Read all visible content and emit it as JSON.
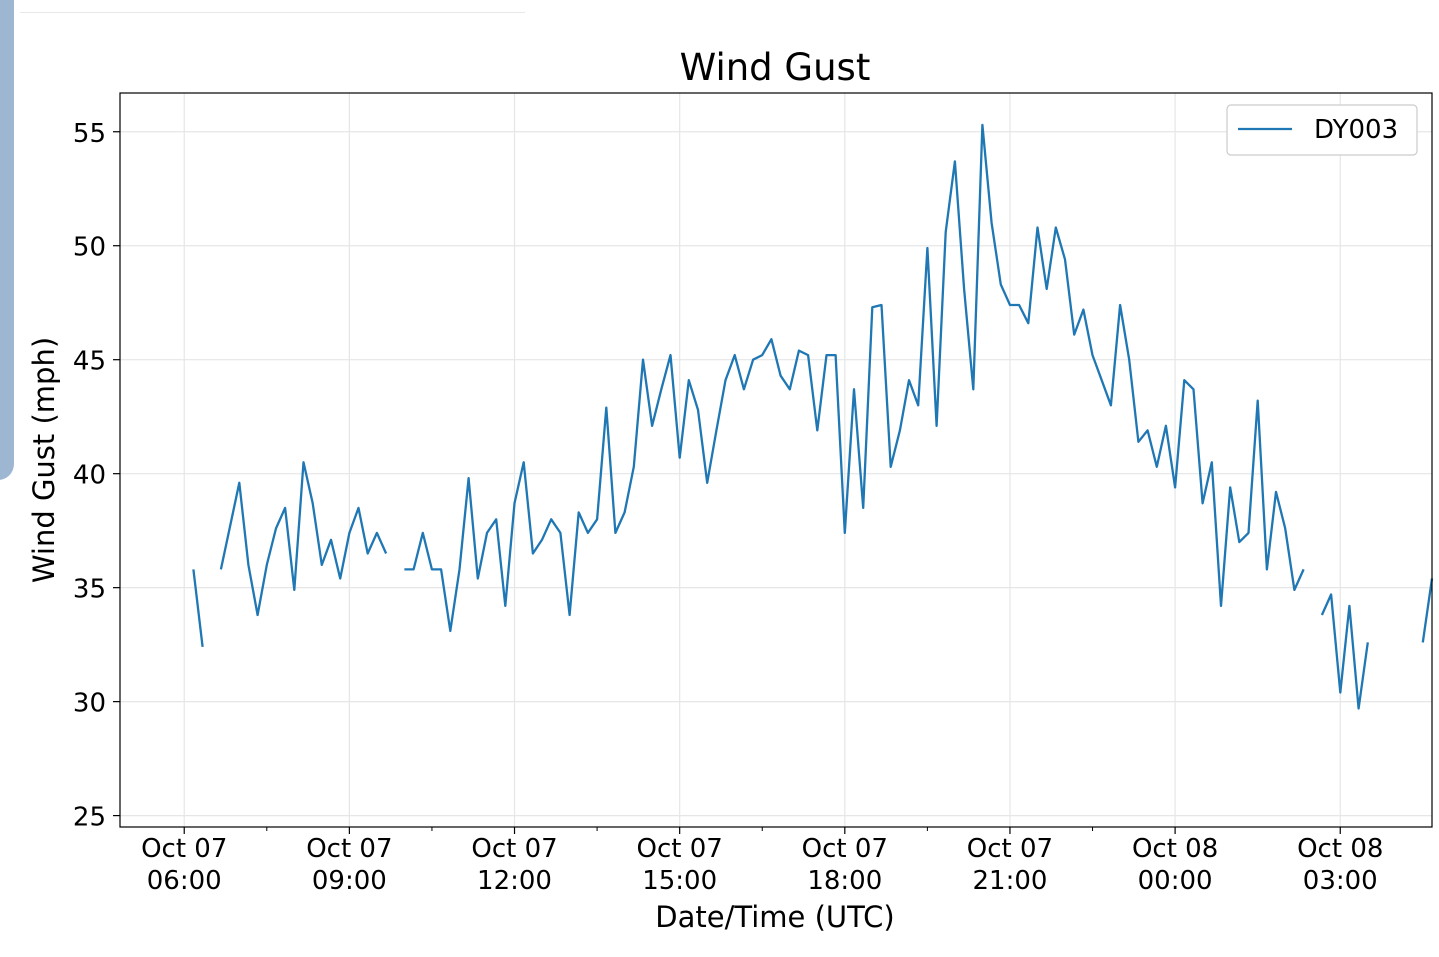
{
  "chart_data": {
    "type": "line",
    "title": "Wind Gust",
    "xlabel": "Date/Time (UTC)",
    "ylabel": "Wind Gust (mph)",
    "ylim": [
      24.5,
      56.7
    ],
    "yticks": [
      25,
      30,
      35,
      40,
      45,
      50,
      55
    ],
    "xlim": [
      "2025-10-07T04:50",
      "2025-10-08T04:40"
    ],
    "xticks": [
      {
        "t": "2025-10-07T06:00",
        "label": [
          "Oct 07",
          "06:00"
        ]
      },
      {
        "t": "2025-10-07T09:00",
        "label": [
          "Oct 07",
          "09:00"
        ]
      },
      {
        "t": "2025-10-07T12:00",
        "label": [
          "Oct 07",
          "12:00"
        ]
      },
      {
        "t": "2025-10-07T15:00",
        "label": [
          "Oct 07",
          "15:00"
        ]
      },
      {
        "t": "2025-10-07T18:00",
        "label": [
          "Oct 07",
          "18:00"
        ]
      },
      {
        "t": "2025-10-07T21:00",
        "label": [
          "Oct 07",
          "21:00"
        ]
      },
      {
        "t": "2025-10-08T00:00",
        "label": [
          "Oct 08",
          "00:00"
        ]
      },
      {
        "t": "2025-10-08T03:00",
        "label": [
          "Oct 08",
          "03:00"
        ]
      }
    ],
    "minor_xticks_hours": [
      1.5,
      4.5,
      7.5,
      10.5,
      13.5,
      16.5,
      19.5,
      22.5
    ],
    "grid": true,
    "legend_position": "top-right",
    "series": [
      {
        "name": "DY003",
        "color": "#1f77b4",
        "segments": [
          [
            [
              "2025-10-07T06:10",
              35.8
            ],
            [
              "2025-10-07T06:20",
              32.4
            ]
          ],
          [
            [
              "2025-10-07T06:40",
              35.8
            ],
            [
              "2025-10-07T06:50",
              37.7
            ],
            [
              "2025-10-07T07:00",
              39.6
            ],
            [
              "2025-10-07T07:10",
              36.0
            ],
            [
              "2025-10-07T07:20",
              33.8
            ],
            [
              "2025-10-07T07:30",
              36.0
            ],
            [
              "2025-10-07T07:40",
              37.6
            ],
            [
              "2025-10-07T07:50",
              38.5
            ],
            [
              "2025-10-07T08:00",
              34.9
            ],
            [
              "2025-10-07T08:10",
              40.5
            ],
            [
              "2025-10-07T08:20",
              38.7
            ],
            [
              "2025-10-07T08:30",
              36.0
            ],
            [
              "2025-10-07T08:40",
              37.1
            ],
            [
              "2025-10-07T08:50",
              35.4
            ],
            [
              "2025-10-07T09:00",
              37.4
            ],
            [
              "2025-10-07T09:10",
              38.5
            ],
            [
              "2025-10-07T09:20",
              36.5
            ],
            [
              "2025-10-07T09:30",
              37.4
            ],
            [
              "2025-10-07T09:40",
              36.5
            ]
          ],
          [
            [
              "2025-10-07T10:00",
              35.8
            ],
            [
              "2025-10-07T10:10",
              35.8
            ],
            [
              "2025-10-07T10:20",
              37.4
            ],
            [
              "2025-10-07T10:30",
              35.8
            ],
            [
              "2025-10-07T10:40",
              35.8
            ],
            [
              "2025-10-07T10:50",
              33.1
            ],
            [
              "2025-10-07T11:00",
              35.8
            ],
            [
              "2025-10-07T11:10",
              39.8
            ],
            [
              "2025-10-07T11:20",
              35.4
            ],
            [
              "2025-10-07T11:30",
              37.4
            ],
            [
              "2025-10-07T11:40",
              38.0
            ],
            [
              "2025-10-07T11:50",
              34.2
            ],
            [
              "2025-10-07T12:00",
              38.7
            ],
            [
              "2025-10-07T12:10",
              40.5
            ],
            [
              "2025-10-07T12:20",
              36.5
            ],
            [
              "2025-10-07T12:30",
              37.1
            ],
            [
              "2025-10-07T12:40",
              38.0
            ],
            [
              "2025-10-07T12:50",
              37.4
            ],
            [
              "2025-10-07T13:00",
              33.8
            ],
            [
              "2025-10-07T13:10",
              38.3
            ],
            [
              "2025-10-07T13:20",
              37.4
            ],
            [
              "2025-10-07T13:30",
              38.0
            ],
            [
              "2025-10-07T13:40",
              42.9
            ],
            [
              "2025-10-07T13:50",
              37.4
            ],
            [
              "2025-10-07T14:00",
              38.3
            ],
            [
              "2025-10-07T14:10",
              40.3
            ],
            [
              "2025-10-07T14:20",
              45.0
            ],
            [
              "2025-10-07T14:30",
              42.1
            ],
            [
              "2025-10-07T14:40",
              43.7
            ],
            [
              "2025-10-07T14:50",
              45.2
            ],
            [
              "2025-10-07T15:00",
              40.7
            ],
            [
              "2025-10-07T15:10",
              44.1
            ],
            [
              "2025-10-07T15:20",
              42.8
            ],
            [
              "2025-10-07T15:30",
              39.6
            ],
            [
              "2025-10-07T15:40",
              41.9
            ],
            [
              "2025-10-07T15:50",
              44.1
            ],
            [
              "2025-10-07T16:00",
              45.2
            ],
            [
              "2025-10-07T16:10",
              43.7
            ],
            [
              "2025-10-07T16:20",
              45.0
            ],
            [
              "2025-10-07T16:30",
              45.2
            ],
            [
              "2025-10-07T16:40",
              45.9
            ],
            [
              "2025-10-07T16:50",
              44.3
            ],
            [
              "2025-10-07T17:00",
              43.7
            ],
            [
              "2025-10-07T17:10",
              45.4
            ],
            [
              "2025-10-07T17:20",
              45.2
            ],
            [
              "2025-10-07T17:30",
              41.9
            ],
            [
              "2025-10-07T17:40",
              45.2
            ],
            [
              "2025-10-07T17:50",
              45.2
            ],
            [
              "2025-10-07T18:00",
              37.4
            ],
            [
              "2025-10-07T18:10",
              43.7
            ],
            [
              "2025-10-07T18:20",
              38.5
            ],
            [
              "2025-10-07T18:30",
              47.3
            ],
            [
              "2025-10-07T18:40",
              47.4
            ],
            [
              "2025-10-07T18:50",
              40.3
            ],
            [
              "2025-10-07T19:00",
              41.9
            ],
            [
              "2025-10-07T19:10",
              44.1
            ],
            [
              "2025-10-07T19:20",
              43.0
            ],
            [
              "2025-10-07T19:30",
              49.9
            ],
            [
              "2025-10-07T19:40",
              42.1
            ],
            [
              "2025-10-07T19:50",
              50.6
            ],
            [
              "2025-10-07T20:00",
              53.7
            ],
            [
              "2025-10-07T20:10",
              48.1
            ],
            [
              "2025-10-07T20:20",
              43.7
            ],
            [
              "2025-10-07T20:30",
              55.3
            ],
            [
              "2025-10-07T20:40",
              51.0
            ],
            [
              "2025-10-07T20:50",
              48.3
            ],
            [
              "2025-10-07T21:00",
              47.4
            ],
            [
              "2025-10-07T21:10",
              47.4
            ],
            [
              "2025-10-07T21:20",
              46.6
            ],
            [
              "2025-10-07T21:30",
              50.8
            ],
            [
              "2025-10-07T21:40",
              48.1
            ],
            [
              "2025-10-07T21:50",
              50.8
            ],
            [
              "2025-10-07T22:00",
              49.4
            ],
            [
              "2025-10-07T22:10",
              46.1
            ],
            [
              "2025-10-07T22:20",
              47.2
            ],
            [
              "2025-10-07T22:30",
              45.2
            ],
            [
              "2025-10-07T22:40",
              44.1
            ],
            [
              "2025-10-07T22:50",
              43.0
            ],
            [
              "2025-10-07T23:00",
              47.4
            ],
            [
              "2025-10-07T23:10",
              45.0
            ],
            [
              "2025-10-07T23:20",
              41.4
            ],
            [
              "2025-10-07T23:30",
              41.9
            ],
            [
              "2025-10-07T23:40",
              40.3
            ],
            [
              "2025-10-07T23:50",
              42.1
            ],
            [
              "2025-10-08T00:00",
              39.4
            ],
            [
              "2025-10-08T00:10",
              44.1
            ],
            [
              "2025-10-08T00:20",
              43.7
            ],
            [
              "2025-10-08T00:30",
              38.7
            ],
            [
              "2025-10-08T00:40",
              40.5
            ],
            [
              "2025-10-08T00:50",
              34.2
            ],
            [
              "2025-10-08T01:00",
              39.4
            ],
            [
              "2025-10-08T01:10",
              37.0
            ],
            [
              "2025-10-08T01:20",
              37.4
            ],
            [
              "2025-10-08T01:30",
              43.2
            ],
            [
              "2025-10-08T01:40",
              35.8
            ],
            [
              "2025-10-08T01:50",
              39.2
            ],
            [
              "2025-10-08T02:00",
              37.6
            ],
            [
              "2025-10-08T02:10",
              34.9
            ],
            [
              "2025-10-08T02:20",
              35.8
            ]
          ],
          [
            [
              "2025-10-08T02:40",
              33.8
            ],
            [
              "2025-10-08T02:50",
              34.7
            ],
            [
              "2025-10-08T03:00",
              30.4
            ],
            [
              "2025-10-08T03:10",
              34.2
            ],
            [
              "2025-10-08T03:20",
              29.7
            ],
            [
              "2025-10-08T03:30",
              32.6
            ]
          ],
          [
            [
              "2025-10-08T04:30",
              32.6
            ],
            [
              "2025-10-08T04:40",
              35.4
            ]
          ]
        ]
      }
    ]
  }
}
